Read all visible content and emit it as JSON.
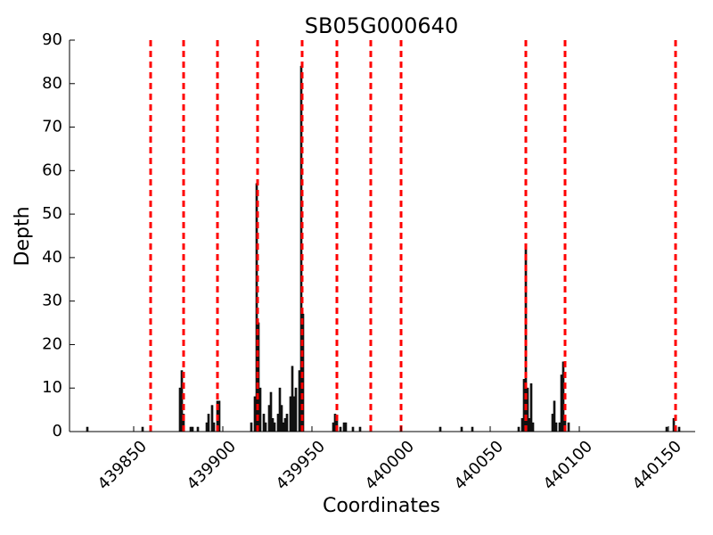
{
  "chart_data": {
    "type": "bar",
    "title": "SB05G000640",
    "xlabel": "Coordinates",
    "ylabel": "Depth",
    "x": [
      439824,
      439855,
      439876,
      439877,
      439878,
      439882,
      439883,
      439886,
      439891,
      439892,
      439894,
      439895,
      439897,
      439898,
      439916,
      439918,
      439919,
      439920,
      439921,
      439923,
      439924,
      439926,
      439927,
      439928,
      439929,
      439931,
      439932,
      439933,
      439934,
      439935,
      439936,
      439938,
      439939,
      439940,
      439941,
      439943,
      439944,
      439945,
      439962,
      439963,
      439964,
      439966,
      439968,
      439969,
      439973,
      439977,
      440000,
      440022,
      440034,
      440040,
      440066,
      440068,
      440069,
      440070,
      440071,
      440072,
      440073,
      440074,
      440085,
      440086,
      440087,
      440089,
      440090,
      440091,
      440092,
      440094,
      440149,
      440153,
      440156
    ],
    "values": [
      1,
      1,
      10,
      14,
      4,
      1,
      1,
      1,
      2,
      4,
      6,
      2,
      7,
      7,
      2,
      8,
      57,
      25,
      10,
      4,
      2,
      6,
      9,
      3,
      2,
      4,
      10,
      6,
      2,
      3,
      4,
      8,
      15,
      8,
      10,
      14,
      84,
      27,
      2,
      4,
      3,
      1,
      2,
      2,
      1,
      1,
      1,
      1,
      1,
      1,
      1,
      3,
      12,
      43,
      10,
      3,
      11,
      2,
      4,
      7,
      2,
      2,
      13,
      16,
      3,
      2,
      1,
      3,
      1
    ],
    "color": "#222222",
    "vlines": [
      439859.5,
      439878,
      439897,
      439919.5,
      439944.5,
      439964,
      439983,
      440000,
      440070,
      440092,
      440154
    ],
    "vline_color": "#ff0000",
    "xlim": [
      439814,
      440165
    ],
    "xticks": [
      439850,
      439900,
      439950,
      440000,
      440050,
      440100,
      440150
    ],
    "ylim": [
      0,
      90
    ],
    "yticks": [
      0,
      10,
      20,
      30,
      40,
      50,
      60,
      70,
      80,
      90
    ]
  }
}
